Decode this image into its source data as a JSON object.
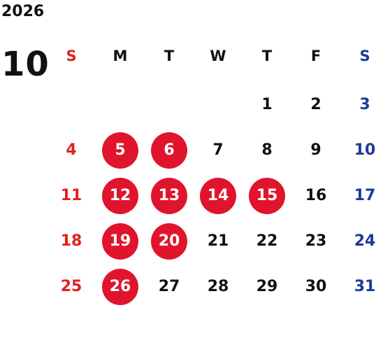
{
  "year": "2026",
  "month": "10",
  "weekdays": [
    "S",
    "M",
    "T",
    "W",
    "T",
    "F",
    "S"
  ],
  "weeks": [
    [
      "",
      "",
      "",
      "",
      "1",
      "2",
      "3"
    ],
    [
      "4",
      "5",
      "6",
      "7",
      "8",
      "9",
      "10"
    ],
    [
      "11",
      "12",
      "13",
      "14",
      "15",
      "16",
      "17"
    ],
    [
      "18",
      "19",
      "20",
      "21",
      "22",
      "23",
      "24"
    ],
    [
      "25",
      "26",
      "27",
      "28",
      "29",
      "30",
      "31"
    ]
  ],
  "highlighted_days": [
    "5",
    "6",
    "12",
    "13",
    "14",
    "15",
    "19",
    "20",
    "26"
  ],
  "colors": {
    "sunday": "#e02020",
    "saturday": "#1e3a9a",
    "highlight": "#e0142c",
    "text": "#111111"
  }
}
